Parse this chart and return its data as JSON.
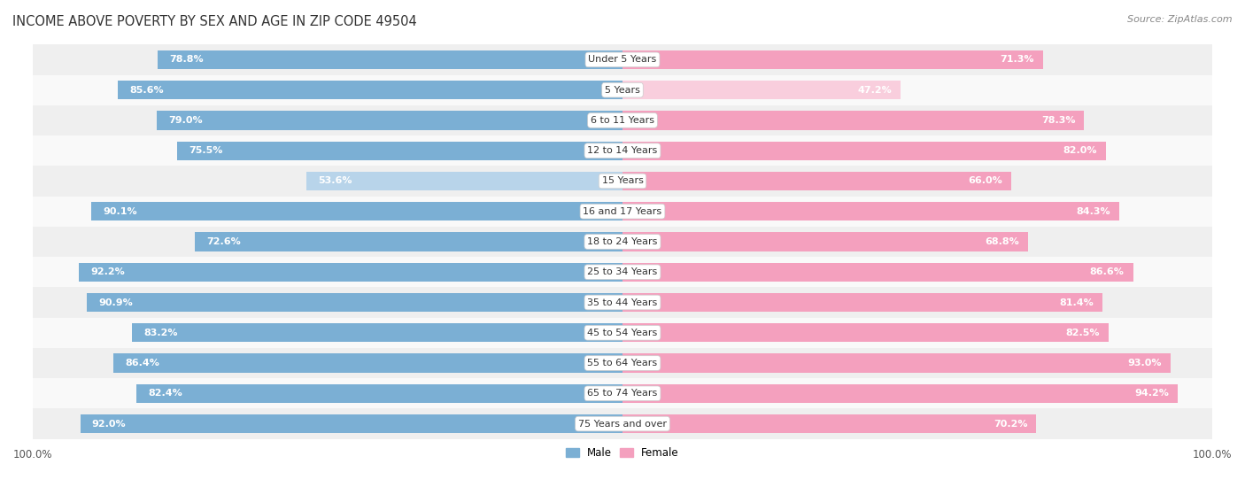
{
  "title": "INCOME ABOVE POVERTY BY SEX AND AGE IN ZIP CODE 49504",
  "source": "Source: ZipAtlas.com",
  "categories": [
    "Under 5 Years",
    "5 Years",
    "6 to 11 Years",
    "12 to 14 Years",
    "15 Years",
    "16 and 17 Years",
    "18 to 24 Years",
    "25 to 34 Years",
    "35 to 44 Years",
    "45 to 54 Years",
    "55 to 64 Years",
    "65 to 74 Years",
    "75 Years and over"
  ],
  "male_values": [
    78.8,
    85.6,
    79.0,
    75.5,
    53.6,
    90.1,
    72.6,
    92.2,
    90.9,
    83.2,
    86.4,
    82.4,
    92.0
  ],
  "female_values": [
    71.3,
    47.2,
    78.3,
    82.0,
    66.0,
    84.3,
    68.8,
    86.6,
    81.4,
    82.5,
    93.0,
    94.2,
    70.2
  ],
  "male_color": "#7bafd4",
  "female_color": "#f4a0be",
  "male_color_light": "#b8d4ea",
  "female_color_light": "#f9cedd",
  "background_row_even": "#efefef",
  "background_row_odd": "#f9f9f9",
  "title_fontsize": 10.5,
  "label_fontsize": 8.0,
  "value_fontsize": 8.0,
  "tick_fontsize": 8.5,
  "source_fontsize": 8
}
